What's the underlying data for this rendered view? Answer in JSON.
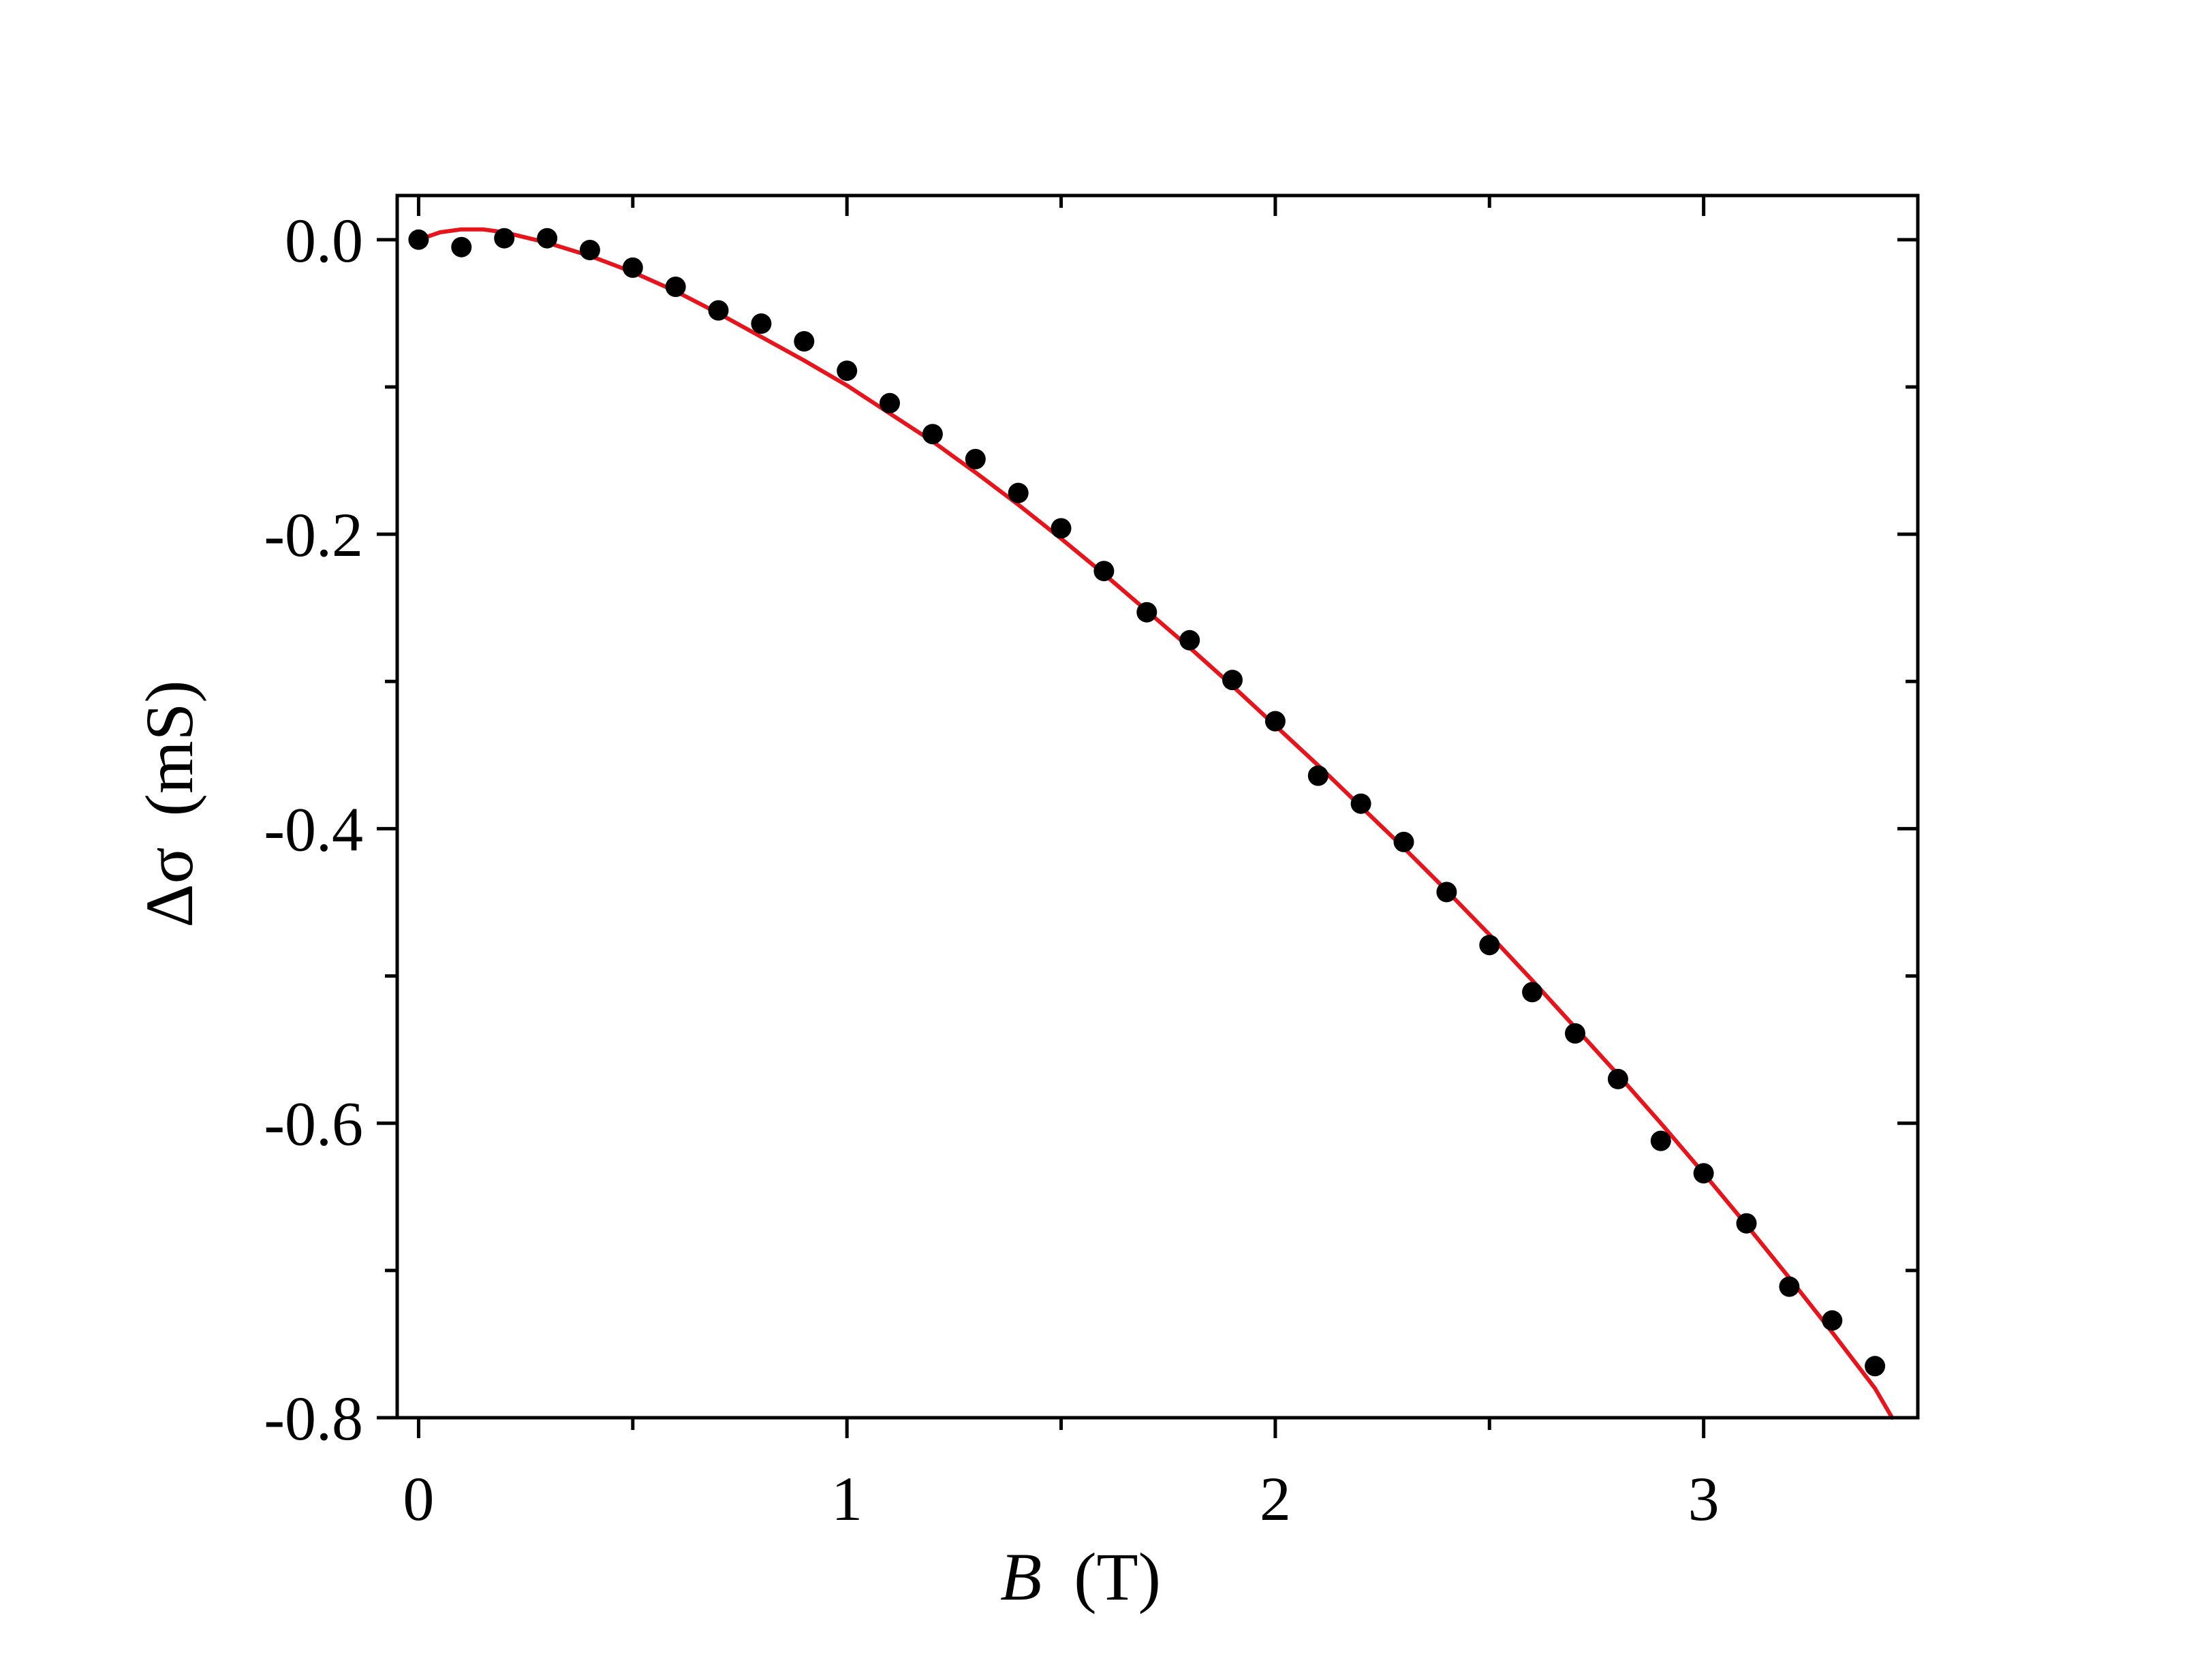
{
  "chart_data": {
    "type": "scatter",
    "title": "",
    "xlabel": {
      "symbol": "B",
      "unit": "(T)"
    },
    "ylabel": {
      "symbol": "Δσ",
      "unit": "(mS)"
    },
    "xlim": [
      -0.05,
      3.5
    ],
    "ylim": [
      -0.8,
      0.03
    ],
    "x_ticks": [
      {
        "value": 0,
        "label": "0"
      },
      {
        "value": 1,
        "label": "1"
      },
      {
        "value": 2,
        "label": "2"
      },
      {
        "value": 3,
        "label": "3"
      }
    ],
    "x_minor_ticks": [
      0.5,
      1.5,
      2.5
    ],
    "y_ticks": [
      {
        "value": 0.0,
        "label": "0.0"
      },
      {
        "value": -0.2,
        "label": "-0.2"
      },
      {
        "value": -0.4,
        "label": "-0.4"
      },
      {
        "value": -0.6,
        "label": "-0.6"
      },
      {
        "value": -0.8,
        "label": "-0.8"
      }
    ],
    "y_minor_ticks": [
      -0.1,
      -0.3,
      -0.5,
      -0.7
    ],
    "grid": false,
    "legend": "none",
    "colors": {
      "points": "#000000",
      "fit": "#e8141c",
      "axes": "#000000"
    },
    "series": [
      {
        "kind": "scatter",
        "x": [
          0.0,
          0.1,
          0.2,
          0.3,
          0.4,
          0.5,
          0.6,
          0.7,
          0.8,
          0.9,
          1.0,
          1.1,
          1.2,
          1.3,
          1.4,
          1.5,
          1.6,
          1.7,
          1.8,
          1.9,
          2.0,
          2.1,
          2.2,
          2.3,
          2.4,
          2.5,
          2.6,
          2.7,
          2.8,
          2.9,
          3.0,
          3.1,
          3.2,
          3.3,
          3.4
        ],
        "y": [
          0.0,
          -0.005,
          0.001,
          0.001,
          -0.007,
          -0.019,
          -0.032,
          -0.048,
          -0.057,
          -0.069,
          -0.089,
          -0.111,
          -0.132,
          -0.149,
          -0.172,
          -0.196,
          -0.225,
          -0.253,
          -0.272,
          -0.299,
          -0.327,
          -0.364,
          -0.383,
          -0.409,
          -0.443,
          -0.479,
          -0.511,
          -0.539,
          -0.57,
          -0.612,
          -0.634,
          -0.668,
          -0.711,
          -0.734,
          -0.765
        ]
      },
      {
        "kind": "line",
        "x": [
          0.0,
          0.05,
          0.1,
          0.15,
          0.2,
          0.3,
          0.4,
          0.5,
          0.6,
          0.7,
          0.8,
          0.9,
          1.0,
          1.1,
          1.2,
          1.3,
          1.4,
          1.5,
          1.6,
          1.7,
          1.8,
          1.9,
          2.0,
          2.1,
          2.2,
          2.3,
          2.4,
          2.5,
          2.6,
          2.7,
          2.8,
          2.9,
          3.0,
          3.1,
          3.2,
          3.3,
          3.4,
          3.44
        ],
        "y": [
          0.0,
          0.005,
          0.007,
          0.007,
          0.005,
          -0.002,
          -0.011,
          -0.022,
          -0.035,
          -0.05,
          -0.066,
          -0.082,
          -0.099,
          -0.118,
          -0.137,
          -0.158,
          -0.18,
          -0.203,
          -0.227,
          -0.252,
          -0.277,
          -0.303,
          -0.33,
          -0.357,
          -0.385,
          -0.413,
          -0.442,
          -0.472,
          -0.503,
          -0.535,
          -0.567,
          -0.6,
          -0.634,
          -0.669,
          -0.705,
          -0.742,
          -0.78,
          -0.8
        ]
      }
    ]
  }
}
